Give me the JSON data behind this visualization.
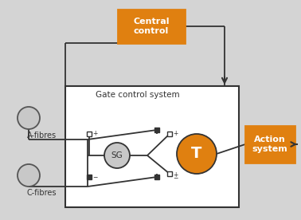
{
  "bg_color": "#d4d4d4",
  "orange": "#e08010",
  "white": "#ffffff",
  "gray_circle_face": "#c8c8c8",
  "gray_circle_edge": "#555555",
  "dark": "#333333",
  "title": "Gate control system",
  "central_control_text": "Central\ncontrol",
  "action_system_text": "Action\nsystem",
  "a_fibres_text": "A-fibres",
  "c_fibres_text": "C-fibres",
  "sg_text": "SG",
  "t_text": "T",
  "figw": 3.78,
  "figh": 2.76,
  "dpi": 100
}
